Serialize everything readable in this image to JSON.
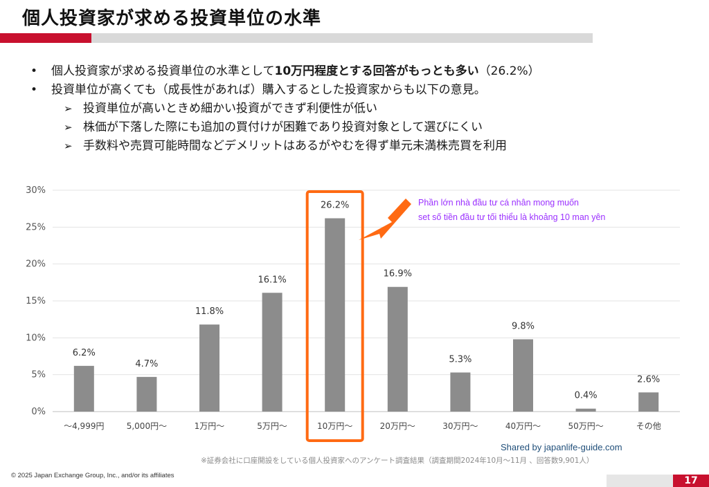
{
  "slide": {
    "title": "個人投資家が求める投資単位の水準",
    "page_number": "17",
    "copyright": "© 2025 Japan Exchange Group, Inc., and/or its affiliates",
    "footnote": "※証券会社に口座開設をしている個人投資家へのアンケート調査結果（調査期間2024年10月～11月 、回答数9,901人）",
    "watermark": "Shared by japanlife-guide.com",
    "colors": {
      "brand_red": "#c8102e",
      "bar_gray": "#8c8c8c",
      "highlight_orange": "#ff6a13",
      "annotation_purple": "#9b30ff"
    }
  },
  "bullets": [
    {
      "marker": "•",
      "text_before": "個人投資家が求める投資単位の水準として",
      "bold_text": "10万円程度とする回答がもっとも多い",
      "text_after": "（26.2%）"
    },
    {
      "marker": "•",
      "text": "投資単位が高くても（成長性があれば）購入するとした投資家からも以下の意見。"
    }
  ],
  "sub_bullets": [
    {
      "marker": "➢",
      "text": "投資単位が高いときめ細かい投資ができず利便性が低い"
    },
    {
      "marker": "➢",
      "text": "株価が下落した際にも追加の買付けが困難であり投資対象として選びにくい"
    },
    {
      "marker": "➢",
      "text": "手数料や売買可能時間などデメリットはあるがやむを得ず単元未満株売買を利用"
    }
  ],
  "annotation": {
    "line1": "Phần lớn nhà đầu tư cá nhân mong muốn",
    "line2": "set số tiền đầu tư tối thiểu là khoảng 10 man yên"
  },
  "chart_data": {
    "type": "bar",
    "categories": [
      "～4,999円",
      "5,000円～",
      "1万円～",
      "5万円～",
      "10万円～",
      "20万円～",
      "30万円～",
      "40万円～",
      "50万円～",
      "その他"
    ],
    "values": [
      6.2,
      4.7,
      11.8,
      16.1,
      26.2,
      16.9,
      5.3,
      9.8,
      0.4,
      2.6
    ],
    "value_labels": [
      "6.2%",
      "4.7%",
      "11.8%",
      "16.1%",
      "26.2%",
      "16.9%",
      "5.3%",
      "9.8%",
      "0.4%",
      "2.6%"
    ],
    "yticks": [
      "0%",
      "5%",
      "10%",
      "15%",
      "20%",
      "25%",
      "30%"
    ],
    "ylim": [
      0,
      30
    ],
    "grid": true,
    "highlight_category": "10万円～"
  }
}
